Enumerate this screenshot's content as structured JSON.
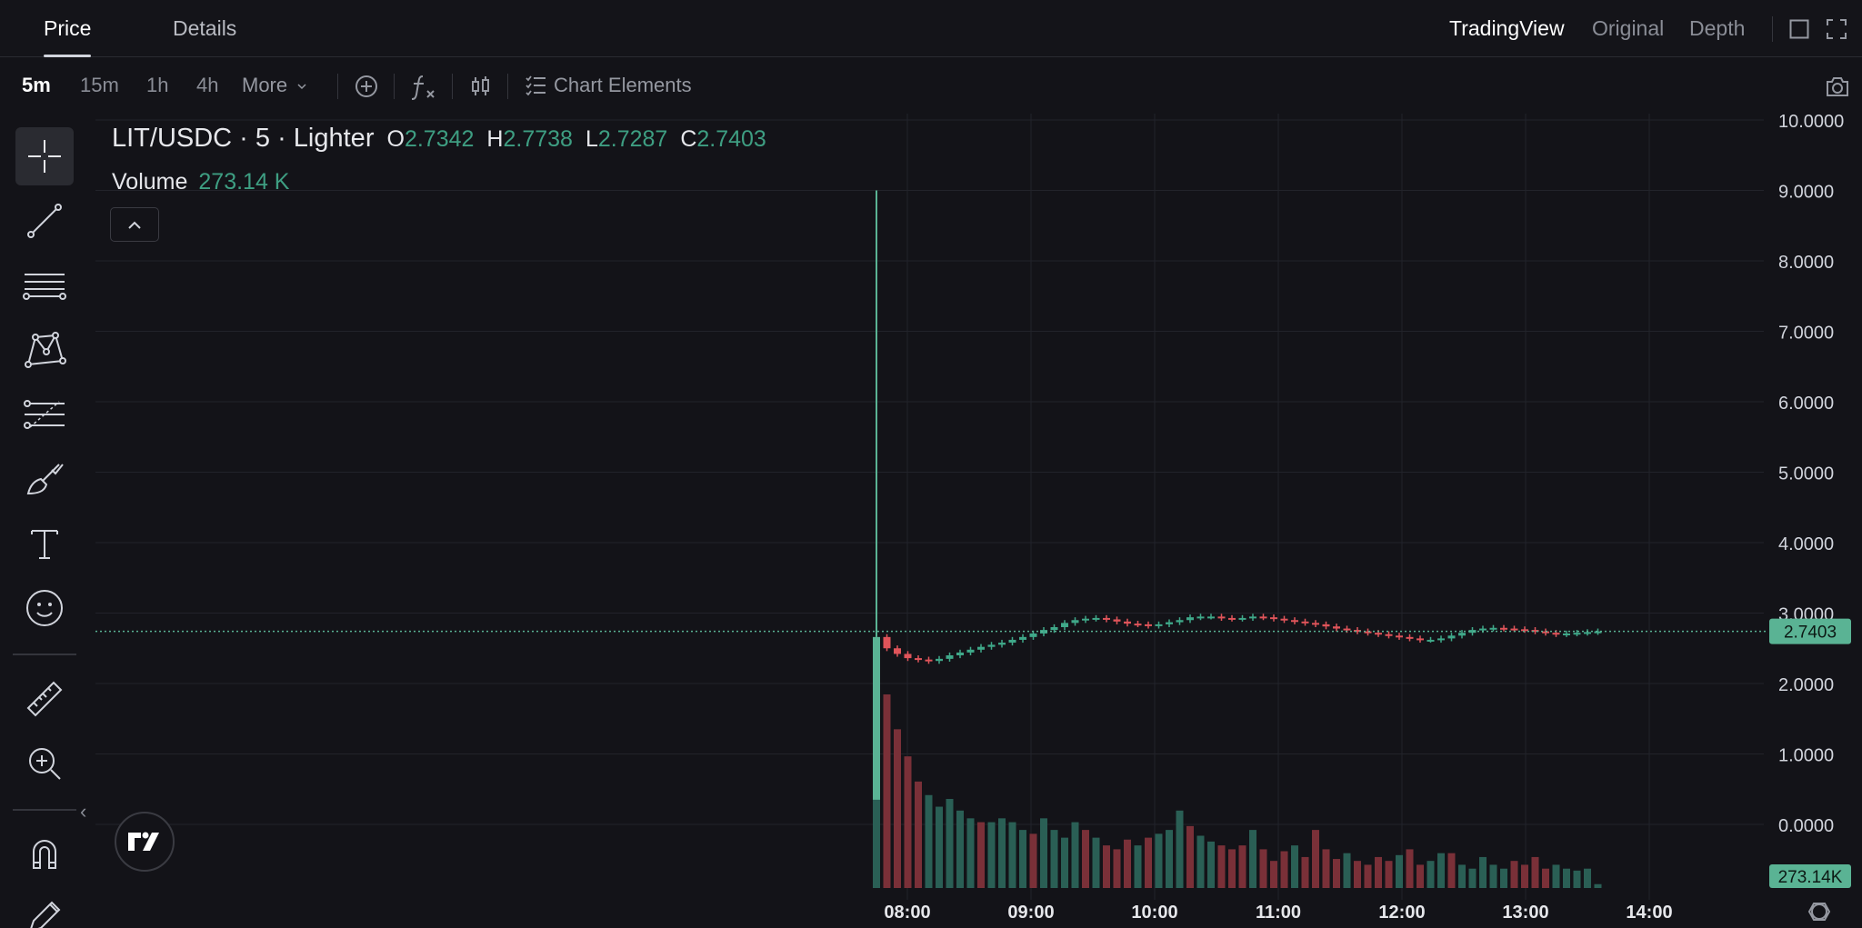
{
  "tabs": [
    {
      "label": "Price",
      "active": true
    },
    {
      "label": "Details",
      "active": false
    }
  ],
  "view_options": [
    {
      "label": "TradingView",
      "active": true
    },
    {
      "label": "Original",
      "active": false
    },
    {
      "label": "Depth",
      "active": false
    }
  ],
  "intervals": [
    {
      "label": "5m",
      "active": true
    },
    {
      "label": "15m",
      "active": false
    },
    {
      "label": "1h",
      "active": false
    },
    {
      "label": "4h",
      "active": false
    }
  ],
  "toolbar": {
    "more_label": "More",
    "chart_elements_label": "Chart Elements"
  },
  "legend": {
    "symbol": "LIT/USDC · 5 · Lighter",
    "open_label": "O",
    "open": "2.7342",
    "high_label": "H",
    "high": "2.7738",
    "low_label": "L",
    "low": "2.7287",
    "close_label": "C",
    "close": "2.7403",
    "volume_label": "Volume",
    "volume": "273.14 K"
  },
  "left_tools": [
    {
      "icon": "crosshair-icon",
      "active": true
    },
    {
      "icon": "trend-line-icon"
    },
    {
      "icon": "horizontal-lines-icon"
    },
    {
      "icon": "pattern-icon"
    },
    {
      "icon": "fib-retracement-icon"
    },
    {
      "icon": "brush-icon"
    },
    {
      "icon": "text-icon"
    },
    {
      "icon": "emoji-icon"
    },
    {
      "icon": "ruler-icon"
    },
    {
      "icon": "zoom-in-icon"
    },
    {
      "icon": "magnet-icon"
    },
    {
      "icon": "lock-drawing-icon"
    }
  ],
  "colors": {
    "up": "#26a69a",
    "up_bar": "#2a5f55",
    "down": "#ef5350",
    "down_bar": "#7a3038",
    "last_price_badge": "#5ab394",
    "grid": "#22232a",
    "background": "#131318"
  },
  "chart_data": {
    "type": "candlestick",
    "y_ticks": [
      "10.0000",
      "9.0000",
      "8.0000",
      "7.0000",
      "6.0000",
      "5.0000",
      "4.0000",
      "3.0000",
      "2.0000",
      "1.0000",
      "0.0000"
    ],
    "x_ticks": [
      "08:00",
      "09:00",
      "10:00",
      "11:00",
      "12:00",
      "13:00",
      "14:00"
    ],
    "ylim": [
      0,
      10
    ],
    "last_price": "2.7403",
    "last_volume": "273.14K",
    "first_candle": {
      "open": 0.0,
      "high": 9.0,
      "low": 0.0,
      "close": 2.66
    },
    "price_path": [
      2.66,
      2.5,
      2.42,
      2.36,
      2.34,
      2.32,
      2.35,
      2.4,
      2.44,
      2.48,
      2.52,
      2.55,
      2.58,
      2.62,
      2.66,
      2.71,
      2.76,
      2.8,
      2.86,
      2.9,
      2.92,
      2.93,
      2.91,
      2.88,
      2.85,
      2.84,
      2.82,
      2.84,
      2.87,
      2.9,
      2.94,
      2.95,
      2.95,
      2.93,
      2.92,
      2.93,
      2.95,
      2.94,
      2.92,
      2.9,
      2.88,
      2.86,
      2.84,
      2.81,
      2.78,
      2.76,
      2.74,
      2.72,
      2.7,
      2.68,
      2.66,
      2.64,
      2.62,
      2.62,
      2.64,
      2.68,
      2.72,
      2.76,
      2.78,
      2.79,
      2.78,
      2.77,
      2.76,
      2.74,
      2.72,
      2.7,
      2.71,
      2.72,
      2.73,
      2.74
    ],
    "volume_bars": [
      0.55,
      1.0,
      0.82,
      0.68,
      0.55,
      0.48,
      0.42,
      0.46,
      0.4,
      0.36,
      0.34,
      0.34,
      0.36,
      0.34,
      0.3,
      0.28,
      0.36,
      0.3,
      0.26,
      0.34,
      0.3,
      0.26,
      0.22,
      0.2,
      0.25,
      0.22,
      0.26,
      0.28,
      0.3,
      0.4,
      0.32,
      0.27,
      0.24,
      0.22,
      0.2,
      0.22,
      0.3,
      0.2,
      0.14,
      0.19,
      0.22,
      0.16,
      0.3,
      0.2,
      0.15,
      0.18,
      0.14,
      0.12,
      0.16,
      0.14,
      0.17,
      0.2,
      0.12,
      0.14,
      0.18,
      0.18,
      0.12,
      0.1,
      0.16,
      0.12,
      0.1,
      0.14,
      0.12,
      0.16,
      0.1,
      0.12,
      0.1,
      0.09,
      0.1,
      0.02
    ]
  }
}
